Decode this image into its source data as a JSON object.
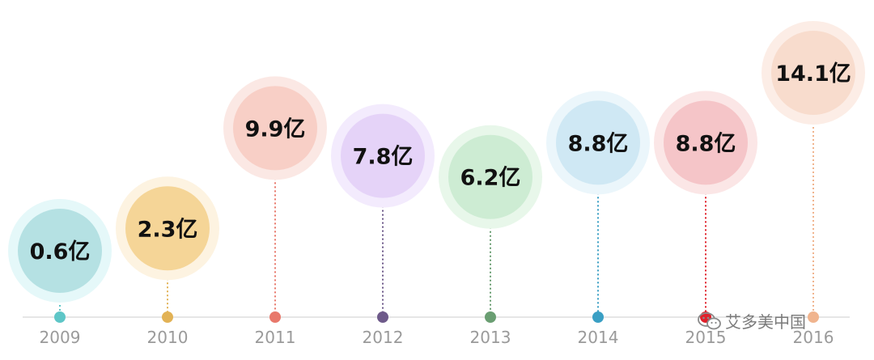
{
  "chart_data": {
    "type": "bubble-timeline",
    "categories": [
      "2009",
      "2010",
      "2011",
      "2012",
      "2013",
      "2014",
      "2015",
      "2016"
    ],
    "values": [
      0.6,
      2.3,
      9.9,
      7.8,
      6.2,
      8.8,
      8.8,
      14.1
    ],
    "value_labels": [
      "0.6亿",
      "2.3亿",
      "9.9亿",
      "7.8亿",
      "6.2亿",
      "8.8亿",
      "8.8亿",
      "14.1亿"
    ],
    "unit": "亿",
    "grid": false,
    "colors": {
      "bubbles": [
        "#b5e1e3",
        "#f5d597",
        "#f8cfc6",
        "#e5d3f8",
        "#cdecd3",
        "#cfe8f4",
        "#f5c5c8",
        "#f8dccd"
      ],
      "halos": [
        "#e5f8f9",
        "#fdf3e1",
        "#fbe8e4",
        "#f3ebfd",
        "#e8f7ea",
        "#ebf6fb",
        "#fbe6e6",
        "#fcede6"
      ],
      "markers": [
        "#5ec6c7",
        "#e2b255",
        "#e8786b",
        "#6e5a8a",
        "#6a9e72",
        "#3a9fc4",
        "#e0202a",
        "#f0b48e"
      ]
    }
  },
  "watermark": {
    "text": "艾多美中国"
  }
}
